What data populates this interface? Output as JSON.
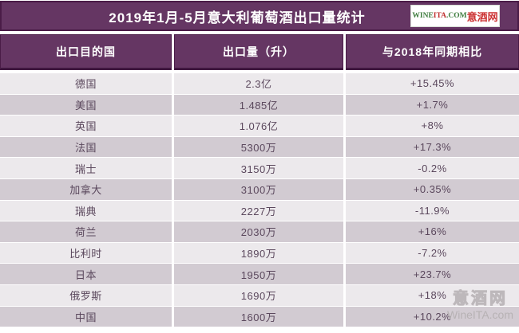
{
  "title_bar": {
    "title": "2019年1月-5月意大利葡萄酒出口量统计",
    "logo": {
      "latin_part1": "WINE",
      "latin_part2": "ITA",
      "latin_part3": ".COM",
      "chinese": "意酒网"
    }
  },
  "chart_data": {
    "type": "table",
    "title": "2019年1月-5月意大利葡萄酒出口量统计",
    "columns": [
      "出口目的国",
      "出口量（升）",
      "与2018年同期相比"
    ],
    "rows": [
      {
        "country": "德国",
        "volume": "2.3亿",
        "change": "+15.45%"
      },
      {
        "country": "美国",
        "volume": "1.485亿",
        "change": "+1.7%"
      },
      {
        "country": "英国",
        "volume": "1.076亿",
        "change": "+8%"
      },
      {
        "country": "法国",
        "volume": "5300万",
        "change": "+17.3%"
      },
      {
        "country": "瑞士",
        "volume": "3150万",
        "change": "-0.2%"
      },
      {
        "country": "加拿大",
        "volume": "3100万",
        "change": "+0.35%"
      },
      {
        "country": "瑞典",
        "volume": "2227万",
        "change": "-11.9%"
      },
      {
        "country": "荷兰",
        "volume": "2030万",
        "change": "+16%"
      },
      {
        "country": "比利时",
        "volume": "1890万",
        "change": "-7.2%"
      },
      {
        "country": "日本",
        "volume": "1950万",
        "change": "+23.7%"
      },
      {
        "country": "俄罗斯",
        "volume": "1690万",
        "change": "+18%"
      },
      {
        "country": "中国",
        "volume": "1600万",
        "change": "+10.2%"
      }
    ]
  },
  "watermark": {
    "line1": "意酒网",
    "line2": "WineITA.com"
  },
  "colors": {
    "purple_fill": "#653663",
    "purple_border": "#4a1c47",
    "row_light": "#ece9ec",
    "row_dark": "#d2cbd2",
    "row_text": "#5b485d",
    "logo_green": "#3c7b3c",
    "logo_red": "#c03030",
    "watermark_gray": "#b7b2b4"
  }
}
